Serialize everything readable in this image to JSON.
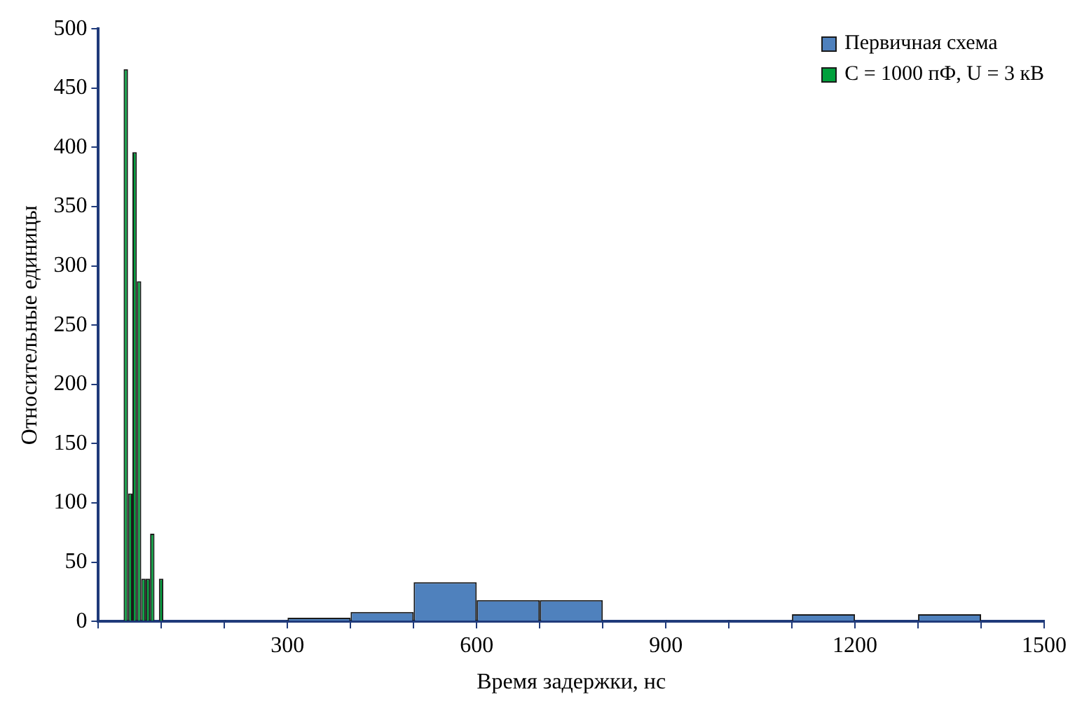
{
  "chart_data": {
    "type": "histogram",
    "xlabel": "Время задержки, нс",
    "ylabel": "Относительные единицы",
    "bins": [
      40,
      47,
      54,
      61,
      68,
      75,
      82,
      89,
      96,
      103,
      200,
      300,
      400,
      500,
      600,
      700,
      800,
      900,
      1000,
      1100,
      1200,
      1300,
      1400
    ],
    "series": [
      {
        "name": "Первичная схема",
        "color": "#4f81bd",
        "values": [
          null,
          null,
          null,
          null,
          null,
          null,
          null,
          null,
          null,
          null,
          1,
          3,
          8,
          33,
          18,
          18,
          0,
          1,
          1,
          6,
          0,
          6
        ]
      },
      {
        "name": "C = 1000 пФ, U = 3 кВ",
        "color": "#00a03c",
        "values": [
          466,
          108,
          396,
          287,
          36,
          36,
          74,
          0,
          36,
          null,
          null,
          null,
          null,
          null,
          null,
          null,
          null,
          null,
          null,
          null,
          null,
          null
        ]
      }
    ],
    "xlim": [
      0,
      1500
    ],
    "xticks": [
      {
        "value": 0,
        "label": null
      },
      {
        "value": 100,
        "label": null
      },
      {
        "value": 200,
        "label": null
      },
      300,
      {
        "value": 400,
        "label": null
      },
      {
        "value": 500,
        "label": null
      },
      600,
      {
        "value": 700,
        "label": null
      },
      {
        "value": 800,
        "label": null
      },
      900,
      {
        "value": 1000,
        "label": null
      },
      {
        "value": 1100,
        "label": null
      },
      1200,
      {
        "value": 1300,
        "label": null
      },
      {
        "value": 1400,
        "label": null
      },
      1500
    ],
    "ylim": [
      0,
      500
    ],
    "yticks": [
      0,
      50,
      100,
      150,
      200,
      250,
      300,
      350,
      400,
      450,
      500
    ],
    "grid": false,
    "legend": "top right"
  }
}
